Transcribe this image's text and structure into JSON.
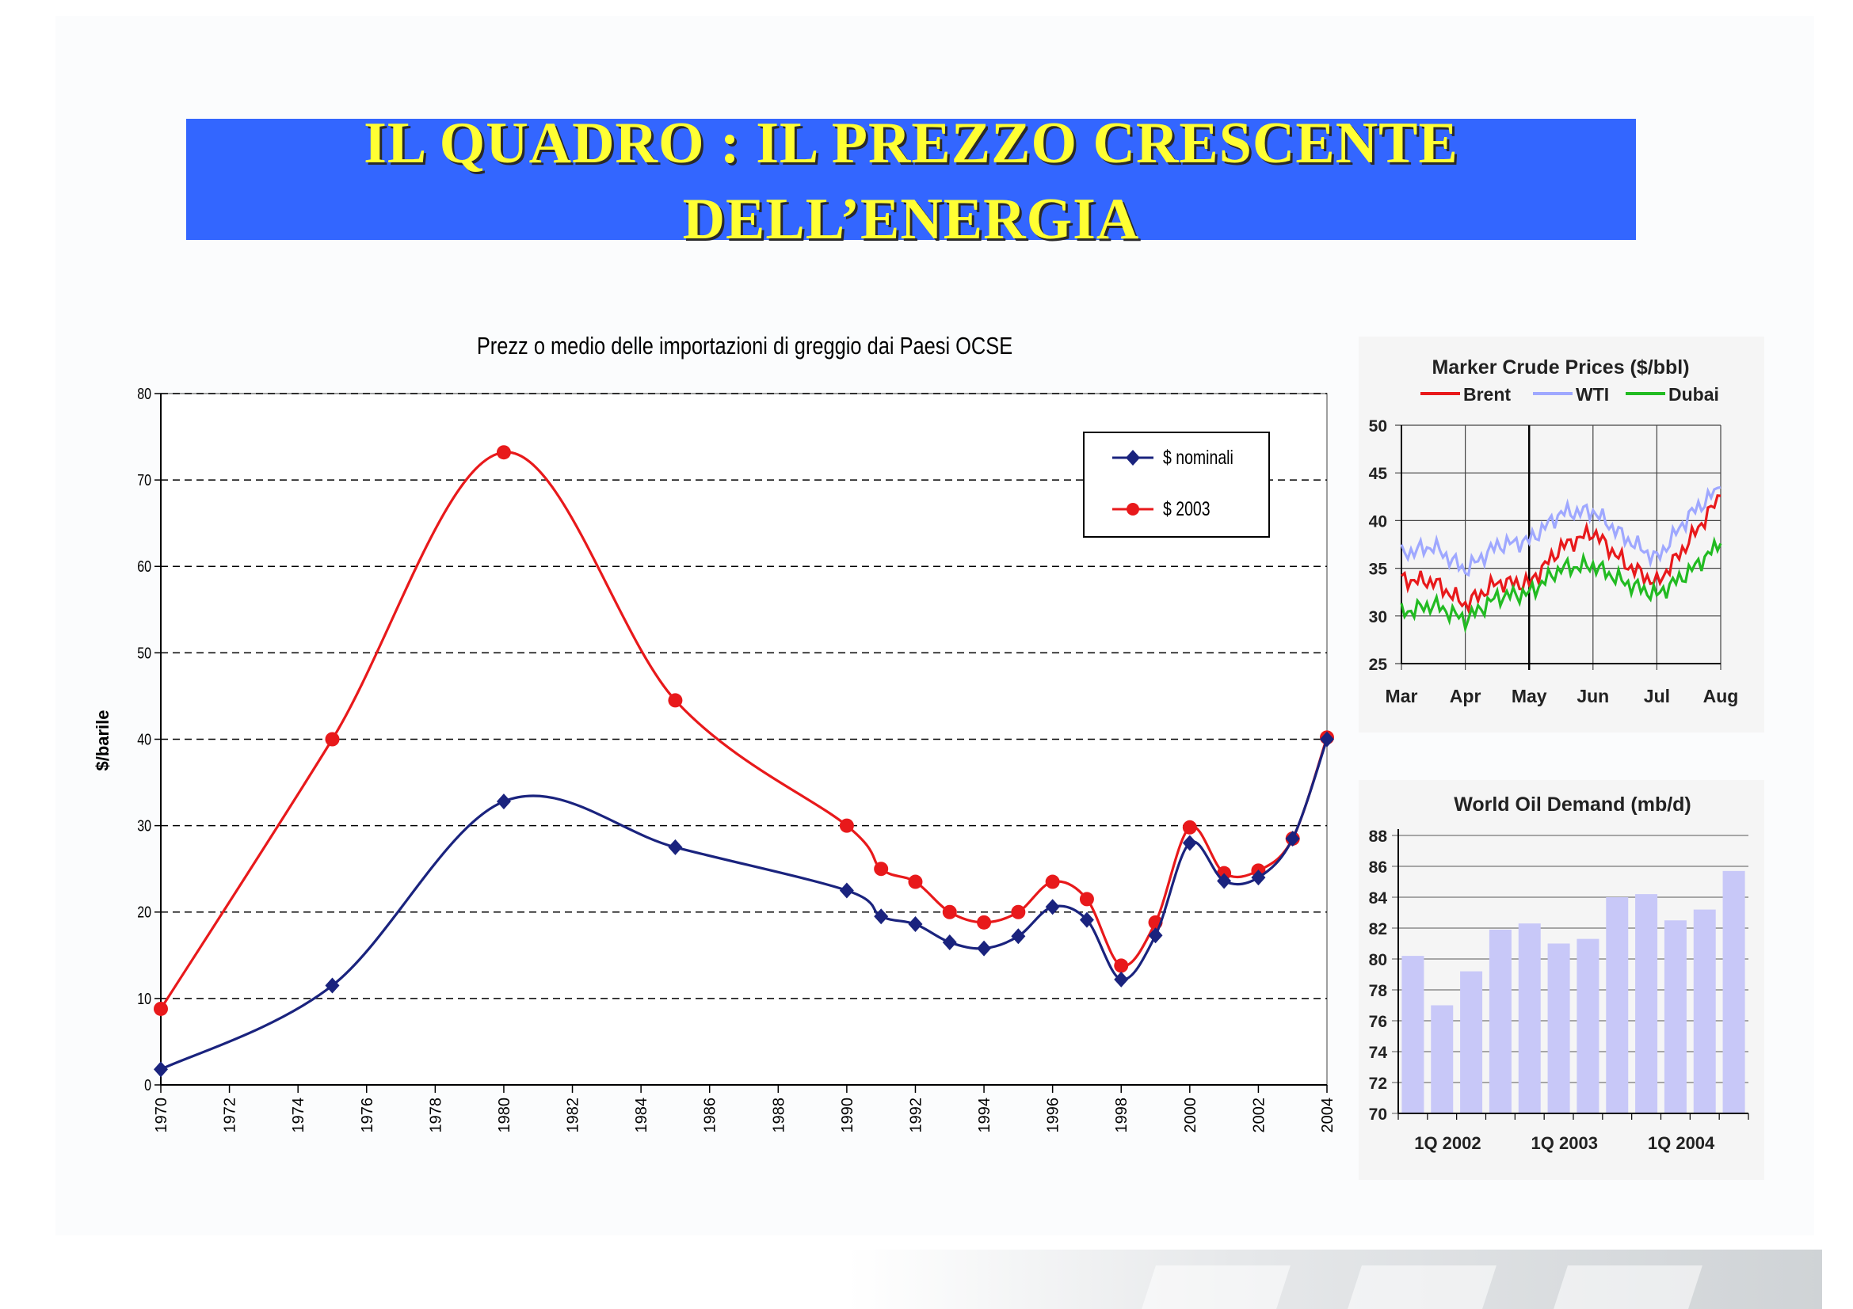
{
  "slide": {
    "title_line1": "IL QUADRO : IL PREZZO CRESCENTE",
    "title_line2": "DELL’ENERGIA"
  },
  "chart_data": [
    {
      "type": "line",
      "title": "Prezz o medio delle importazioni di greggio dai Paesi OCSE",
      "ylabel": "$/barile",
      "xlabel": "",
      "xlim": [
        1970,
        2004
      ],
      "ylim": [
        0,
        80
      ],
      "grid": true,
      "legend_position": "top-right",
      "x_ticks": [
        "1970",
        "1972",
        "1974",
        "1976",
        "1978",
        "1980",
        "1982",
        "1984",
        "1986",
        "1988",
        "1990",
        "1992",
        "1994",
        "1996",
        "1998",
        "2000",
        "2002",
        "2004"
      ],
      "y_ticks": [
        "0",
        "10",
        "20",
        "30",
        "40",
        "50",
        "60",
        "70",
        "80"
      ],
      "series": [
        {
          "name": "$ nominali",
          "color": "#1a237e",
          "marker": "diamond",
          "points": [
            [
              1970,
              1.8
            ],
            [
              1975,
              11.5
            ],
            [
              1980,
              32.8
            ],
            [
              1985,
              27.5
            ],
            [
              1990,
              22.5
            ],
            [
              1991,
              19.5
            ],
            [
              1992,
              18.6
            ],
            [
              1993,
              16.5
            ],
            [
              1994,
              15.8
            ],
            [
              1995,
              17.2
            ],
            [
              1996,
              20.6
            ],
            [
              1997,
              19.1
            ],
            [
              1998,
              12.2
            ],
            [
              1999,
              17.3
            ],
            [
              2000,
              28.0
            ],
            [
              2001,
              23.6
            ],
            [
              2002,
              24.0
            ],
            [
              2003,
              28.5
            ],
            [
              2004,
              40.0
            ]
          ]
        },
        {
          "name": "$ 2003",
          "color": "#e8191b",
          "marker": "circle",
          "points": [
            [
              1970,
              8.8
            ],
            [
              1975,
              40.0
            ],
            [
              1980,
              73.2
            ],
            [
              1985,
              44.5
            ],
            [
              1990,
              30.0
            ],
            [
              1991,
              25.0
            ],
            [
              1992,
              23.5
            ],
            [
              1993,
              20.0
            ],
            [
              1994,
              18.8
            ],
            [
              1995,
              20.0
            ],
            [
              1996,
              23.5
            ],
            [
              1997,
              21.5
            ],
            [
              1998,
              13.8
            ],
            [
              1999,
              18.8
            ],
            [
              2000,
              29.8
            ],
            [
              2001,
              24.5
            ],
            [
              2002,
              24.8
            ],
            [
              2003,
              28.5
            ],
            [
              2004,
              40.2
            ]
          ]
        }
      ]
    },
    {
      "type": "line",
      "title": "Marker Crude Prices ($/bbl)",
      "xlabel": "",
      "ylabel": "",
      "ylim": [
        25,
        50
      ],
      "grid": true,
      "legend_position": "top",
      "x_ticks": [
        "Mar",
        "Apr",
        "May",
        "Jun",
        "Jul",
        "Aug"
      ],
      "y_ticks": [
        "25",
        "30",
        "35",
        "40",
        "45",
        "50"
      ],
      "series": [
        {
          "name": "Brent",
          "color": "#e8191b",
          "x": [
            "Mar",
            "",
            "Apr",
            "",
            "May",
            "",
            "Jun",
            "",
            "Jul",
            "",
            "Aug"
          ],
          "values": [
            33.8,
            33.6,
            31.2,
            33.5,
            33.4,
            37.2,
            38.8,
            35.5,
            33.4,
            37.8,
            42.6
          ]
        },
        {
          "name": "WTI",
          "color": "#9fa8ff",
          "x": [
            "Mar",
            "",
            "Apr",
            "",
            "May",
            "",
            "Jun",
            "",
            "Jul",
            "",
            "Aug"
          ],
          "values": [
            36.5,
            37.3,
            34.8,
            37.4,
            37.9,
            40.8,
            41.0,
            38.2,
            36.0,
            40.5,
            43.5
          ]
        },
        {
          "name": "Dubai",
          "color": "#22bb22",
          "x": [
            "Mar",
            "",
            "Apr",
            "",
            "May",
            "",
            "Jun",
            "",
            "Jul",
            "",
            "Aug"
          ],
          "values": [
            30.3,
            31.2,
            29.6,
            32.0,
            32.4,
            35.0,
            35.3,
            33.5,
            32.2,
            34.6,
            37.6
          ]
        }
      ]
    },
    {
      "type": "bar",
      "title": "World Oil Demand (mb/d)",
      "xlabel": "",
      "ylabel": "",
      "ylim": [
        70,
        88
      ],
      "grid": true,
      "color": "#c8c8f8",
      "x_ticks": [
        "1Q 2002",
        "1Q 2003",
        "1Q 2004"
      ],
      "categories": [
        "1Q 2002",
        "",
        "",
        "",
        "1Q 2003",
        "",
        "",
        "",
        "1Q 2004",
        "",
        "",
        ""
      ],
      "values": [
        80.2,
        77.0,
        79.2,
        81.9,
        82.3,
        81.0,
        81.3,
        84.0,
        84.2,
        82.5,
        83.2,
        85.7
      ],
      "y_ticks": [
        "70",
        "72",
        "74",
        "76",
        "78",
        "80",
        "82",
        "84",
        "86",
        "88"
      ]
    }
  ]
}
